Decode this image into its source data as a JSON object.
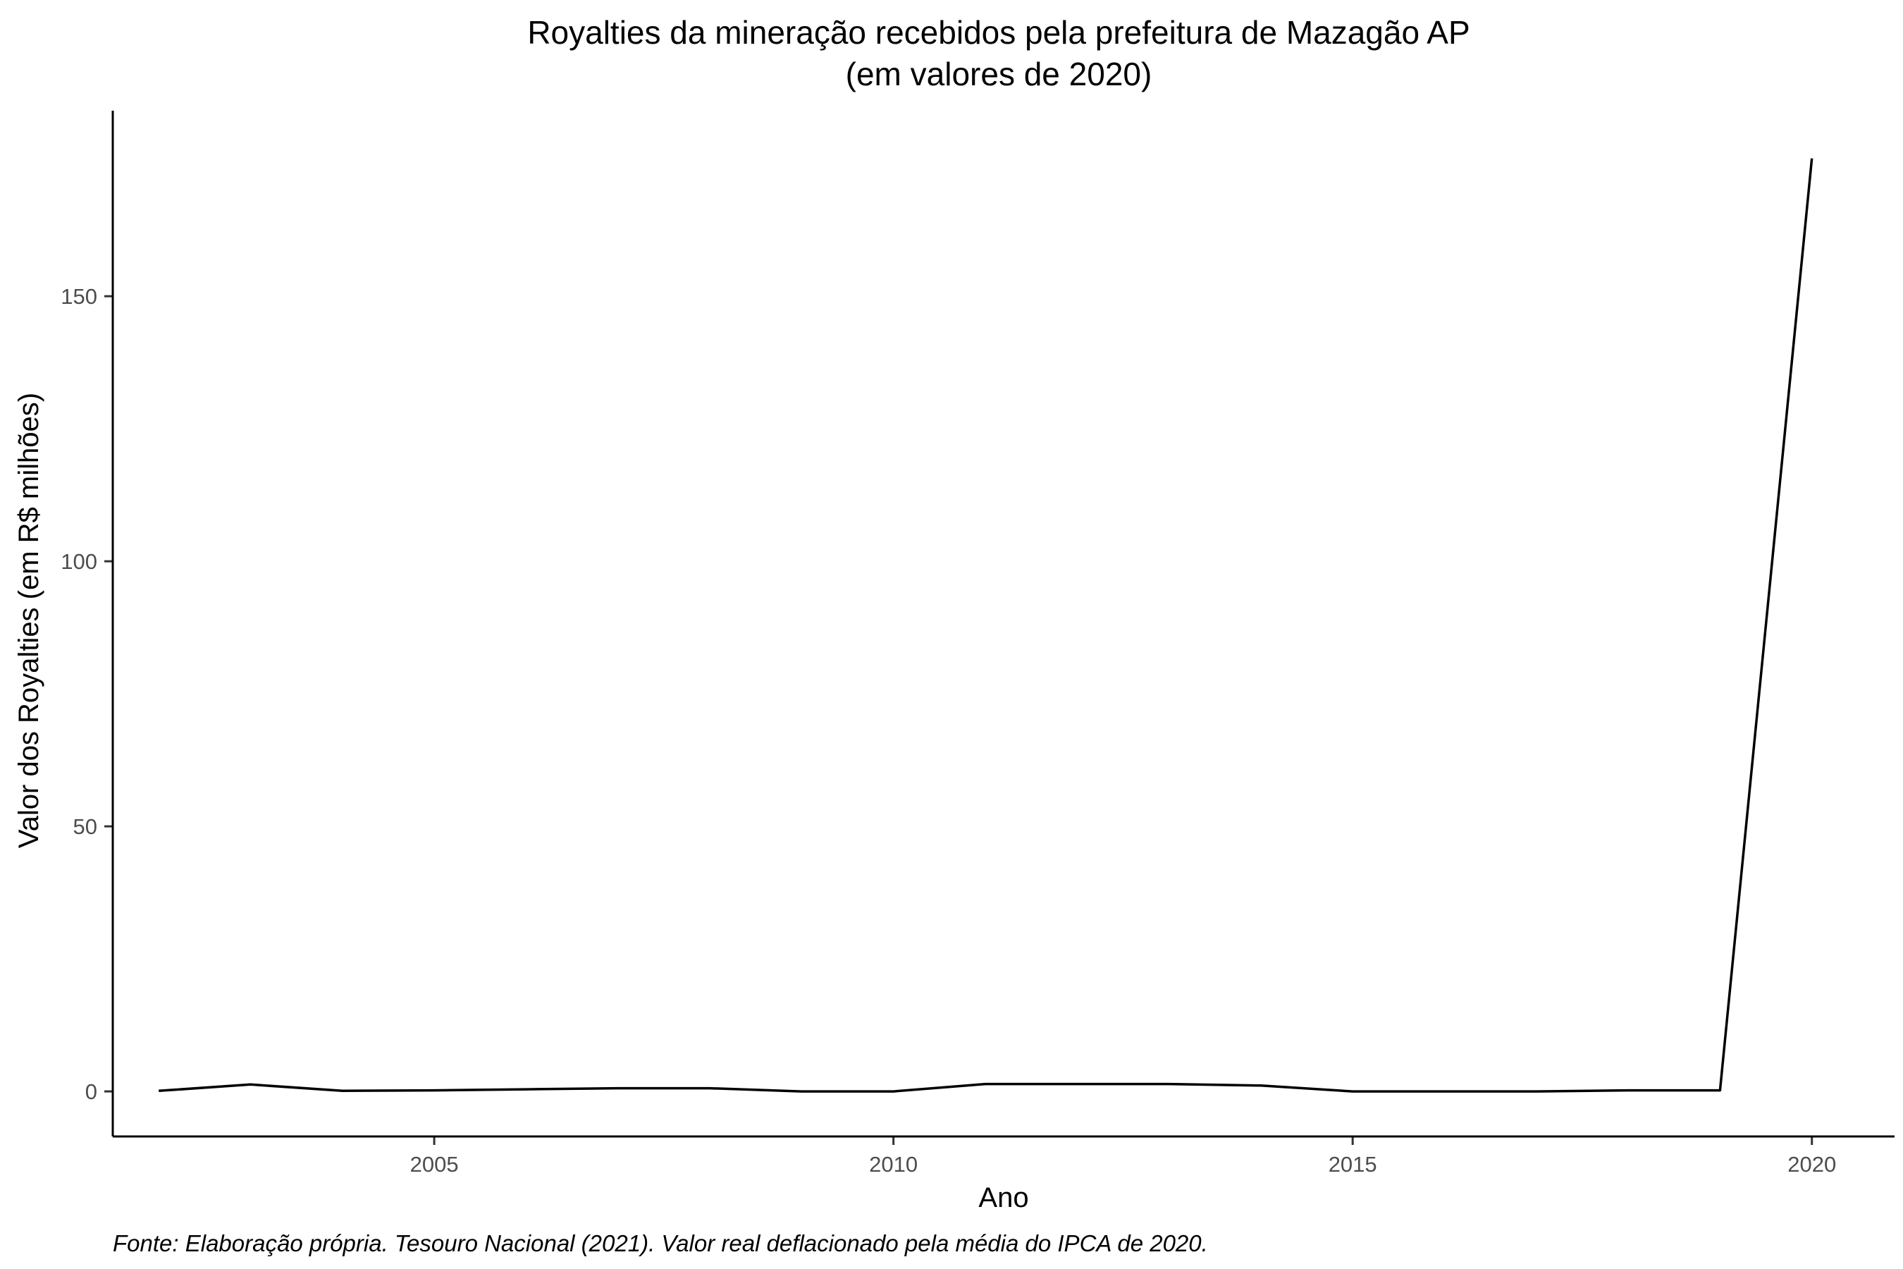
{
  "chart_data": {
    "type": "line",
    "title": "Royalties da mineração recebidos pela prefeitura de Mazagão AP",
    "subtitle": "(em valores de 2020)",
    "xlabel": "Ano",
    "ylabel": "Valor dos Royalties (em R$ milhões)",
    "caption": "Fonte: Elaboração própria. Tesouro Nacional (2021). Valor real deflacionado pela média do IPCA de 2020.",
    "x": [
      2002,
      2003,
      2004,
      2005,
      2006,
      2007,
      2008,
      2009,
      2010,
      2011,
      2012,
      2013,
      2014,
      2015,
      2016,
      2017,
      2018,
      2019,
      2020
    ],
    "series": [
      {
        "values": [
          0.1,
          1.3,
          0.1,
          0.2,
          0.4,
          0.6,
          0.6,
          0.0,
          0.0,
          1.4,
          1.4,
          1.4,
          1.1,
          0.0,
          0.0,
          0.0,
          0.2,
          0.2,
          176
        ]
      }
    ],
    "x_ticks": [
      2005,
      2010,
      2015,
      2020
    ],
    "y_ticks": [
      0,
      50,
      100,
      150
    ],
    "xlim": [
      2001.5,
      2020.9
    ],
    "ylim": [
      -8.5,
      185
    ],
    "grid": false,
    "line_color": "#000000"
  }
}
